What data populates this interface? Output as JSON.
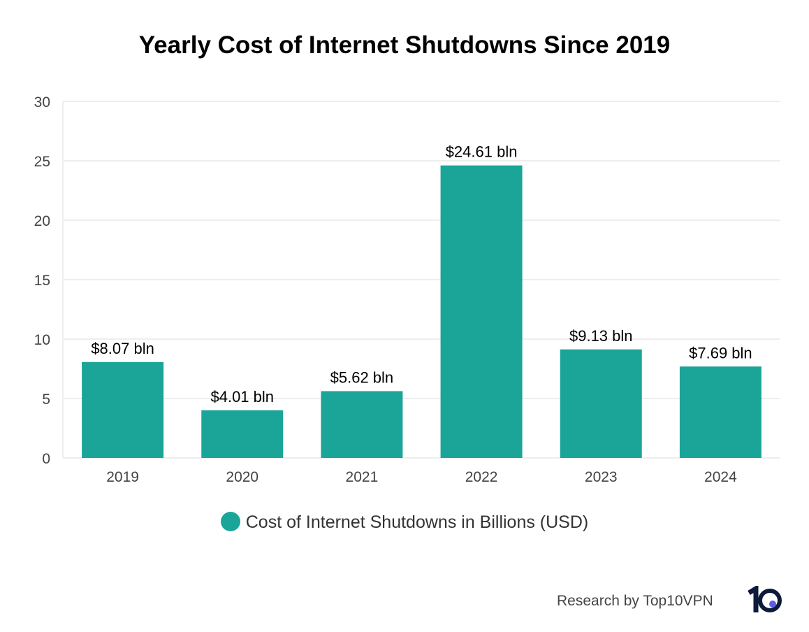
{
  "chart_data": {
    "type": "bar",
    "title": "Yearly Cost of Internet Shutdowns Since 2019",
    "categories": [
      "2019",
      "2020",
      "2021",
      "2022",
      "2023",
      "2024"
    ],
    "series": [
      {
        "name": "Cost of Internet Shutdowns in Billions (USD)",
        "values": [
          8.07,
          4.01,
          5.62,
          24.61,
          9.13,
          7.69
        ]
      }
    ],
    "data_labels": [
      "$8.07 bln",
      "$4.01 bln",
      "$5.62 bln",
      "$24.61 bln",
      "$9.13 bln",
      "$7.69 bln"
    ],
    "ylim": [
      0,
      30
    ],
    "yticks": [
      0,
      5,
      10,
      15,
      20,
      25,
      30
    ],
    "grid": true,
    "legend": "bottom",
    "colors": {
      "bar": "#1ba599",
      "grid": "#eeeeee",
      "logo_dark": "#0e1a3a",
      "logo_dot": "#5b5fe8"
    }
  },
  "footer": {
    "credit": "Research by Top10VPN",
    "logo": "10"
  }
}
